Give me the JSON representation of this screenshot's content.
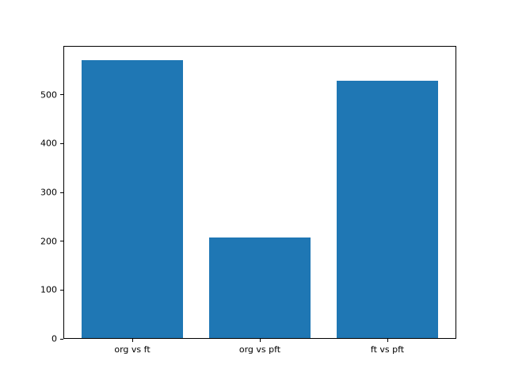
{
  "figure": {
    "background": "#ffffff"
  },
  "chart_data": {
    "type": "bar",
    "title": "",
    "xlabel": "",
    "ylabel": "",
    "categories": [
      "org vs ft",
      "org vs pft",
      "ft vs pft"
    ],
    "values": [
      571,
      207,
      529
    ],
    "bar_color": "#1f77b4",
    "bar_width_fraction": 0.8,
    "ylim": [
      0,
      600
    ],
    "yticks": [
      0,
      100,
      200,
      300,
      400,
      500
    ],
    "grid": false,
    "legend": "none",
    "frame": "full-box"
  }
}
